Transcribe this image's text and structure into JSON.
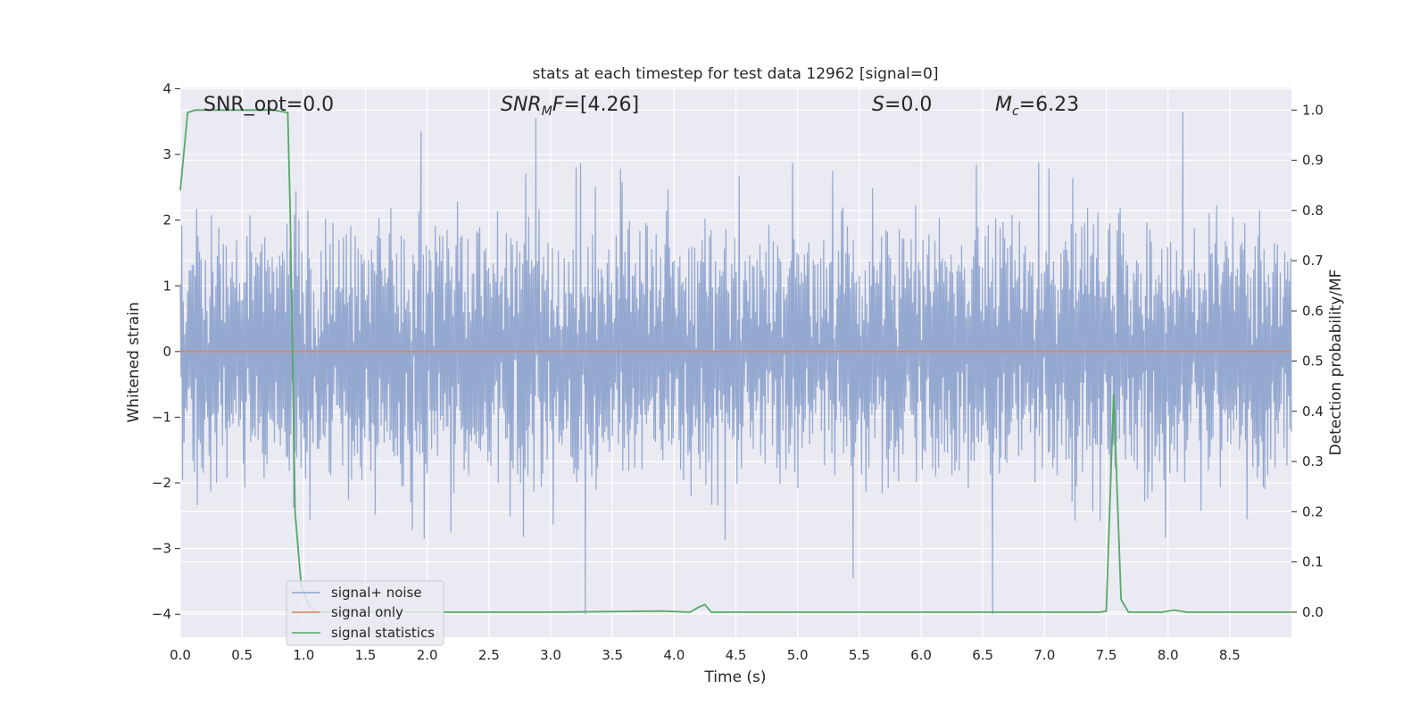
{
  "chart_data": {
    "type": "line",
    "title": "stats at each timestep for test data 12962 [signal=0]",
    "xlabel": "Time (s)",
    "ylabel_left": "Whitened strain",
    "ylabel_right": "Detection probability/MF",
    "xlim": [
      0.0,
      9.0
    ],
    "ylim_left": [
      -4.35,
      4.02
    ],
    "ylim_right": [
      -0.05,
      1.045
    ],
    "x_ticks": [
      "0.0",
      "0.5",
      "1.0",
      "1.5",
      "2.0",
      "2.5",
      "3.0",
      "3.5",
      "4.0",
      "4.5",
      "5.0",
      "5.5",
      "6.0",
      "6.5",
      "7.0",
      "7.5",
      "8.0",
      "8.5"
    ],
    "y_ticks_left": [
      "4",
      "3",
      "2",
      "1",
      "0",
      "−1",
      "−2",
      "−3",
      "−4"
    ],
    "y_ticks_right": [
      "1.0",
      "0.9",
      "0.8",
      "0.7",
      "0.6",
      "0.5",
      "0.4",
      "0.3",
      "0.2",
      "0.1",
      "0.0"
    ],
    "grid": true,
    "legend_position": "lower-left",
    "annotations": {
      "snr_opt": "SNR_opt=0.0",
      "snr_mf_main": "SNR",
      "snr_mf_sub": "M",
      "snr_mf_main2": "F",
      "snr_mf_value": "=[4.26]",
      "s_var": "S",
      "s_value": "=0.0",
      "mc_var": "M",
      "mc_sub": "c",
      "mc_value": "=6.23"
    },
    "series": [
      {
        "name": "signal+ noise",
        "axis": "left",
        "color": "#8ba1cc",
        "description_envelope_upper": 1.8,
        "description_envelope_lower": -1.8,
        "notable_spikes": [
          {
            "x": 2.88,
            "y": 3.55
          },
          {
            "x": 3.28,
            "y": -4.0
          },
          {
            "x": 6.58,
            "y": -4.0
          },
          {
            "x": 8.12,
            "y": 3.65
          },
          {
            "x": 1.95,
            "y": 3.35
          },
          {
            "x": 5.45,
            "y": -3.45
          }
        ]
      },
      {
        "name": "signal only",
        "axis": "left",
        "color": "#dd8452",
        "x": [
          0.0,
          9.0
        ],
        "y": [
          0.0,
          0.0
        ]
      },
      {
        "name": "signal statistics",
        "axis": "right",
        "color": "#55a868",
        "x": [
          0.0,
          0.06,
          0.12,
          0.25,
          0.5,
          0.75,
          0.87,
          0.89,
          0.93,
          0.98,
          1.05,
          1.1,
          2.0,
          3.0,
          3.9,
          4.13,
          4.2,
          4.25,
          4.3,
          5.0,
          6.0,
          7.0,
          7.45,
          7.5,
          7.56,
          7.62,
          7.68,
          7.8,
          7.95,
          8.05,
          8.15,
          8.5,
          9.0
        ],
        "y": [
          0.84,
          0.995,
          1.0,
          1.0,
          1.0,
          1.0,
          0.995,
          0.8,
          0.2,
          0.05,
          0.01,
          0.0,
          0.0,
          0.0,
          0.002,
          0.0,
          0.01,
          0.015,
          0.0,
          0.0,
          0.0,
          0.0,
          0.0,
          0.002,
          0.435,
          0.025,
          0.0,
          0.0,
          0.0,
          0.004,
          0.0,
          0.0,
          0.0
        ]
      }
    ]
  }
}
